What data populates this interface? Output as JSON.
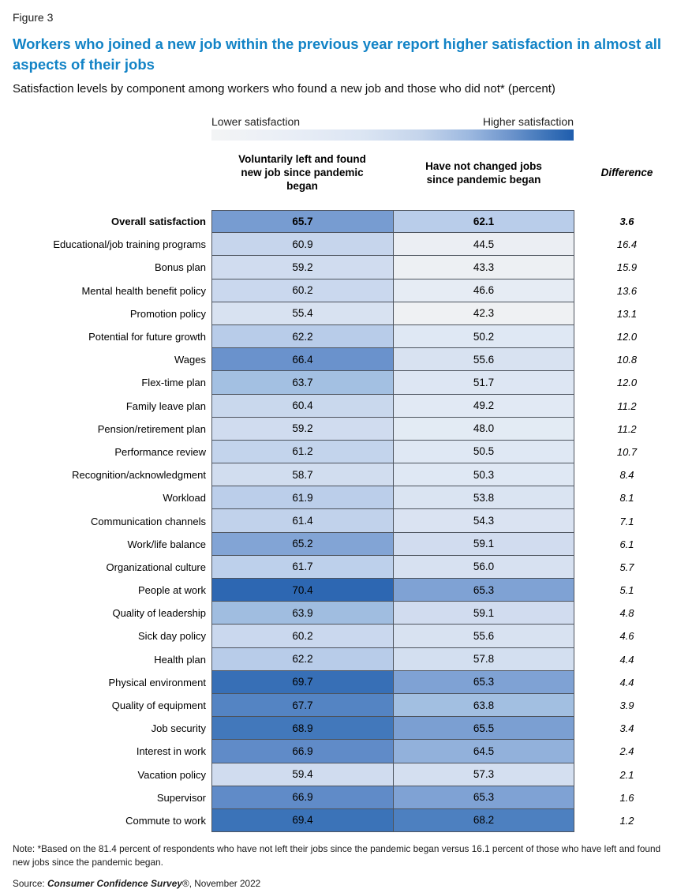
{
  "header": {
    "figure_label": "Figure 3",
    "title": "Workers who joined a new job within the previous year report higher satisfaction in almost all aspects of their jobs",
    "subtitle": "Satisfaction levels by component among workers who found a new job and those who did not* (percent)"
  },
  "footer": {
    "note": "Note: *Based on the 81.4 percent of respondents who have not left their jobs since the pandemic began versus 16.1 percent of those who have left and found new jobs since the pandemic began.",
    "source_prefix": "Source: ",
    "source_name": "Consumer Confidence Survey",
    "source_suffix": "®, November 2022"
  },
  "chart_data": {
    "type": "heatmap",
    "title": "Workers who joined a new job within the previous year report higher satisfaction in almost all aspects of their jobs",
    "subtitle": "Satisfaction levels by component among workers who found a new job and those who did not* (percent)",
    "legend": {
      "low_label": "Lower satisfaction",
      "high_label": "Higher satisfaction",
      "gradient_from": "#f3f4f5",
      "gradient_to": "#1f5dad"
    },
    "columns": [
      "Voluntarily left and found new job since pandemic began",
      "Have not changed jobs since pandemic began",
      "Difference"
    ],
    "rows": [
      {
        "label": "Overall satisfaction",
        "left": "65.7",
        "right": "62.1",
        "diff": "3.6"
      },
      {
        "label": "Educational/job training programs",
        "left": "60.9",
        "right": "44.5",
        "diff": "16.4"
      },
      {
        "label": "Bonus plan",
        "left": "59.2",
        "right": "43.3",
        "diff": "15.9"
      },
      {
        "label": "Mental health benefit policy",
        "left": "60.2",
        "right": "46.6",
        "diff": "13.6"
      },
      {
        "label": "Promotion policy",
        "left": "55.4",
        "right": "42.3",
        "diff": "13.1"
      },
      {
        "label": "Potential for future growth",
        "left": "62.2",
        "right": "50.2",
        "diff": "12.0"
      },
      {
        "label": "Wages",
        "left": "66.4",
        "right": "55.6",
        "diff": "10.8"
      },
      {
        "label": "Flex-time plan",
        "left": "63.7",
        "right": "51.7",
        "diff": "12.0"
      },
      {
        "label": "Family leave plan",
        "left": "60.4",
        "right": "49.2",
        "diff": "11.2"
      },
      {
        "label": "Pension/retirement plan",
        "left": "59.2",
        "right": "48.0",
        "diff": "11.2"
      },
      {
        "label": "Performance review",
        "left": "61.2",
        "right": "50.5",
        "diff": "10.7"
      },
      {
        "label": "Recognition/acknowledgment",
        "left": "58.7",
        "right": "50.3",
        "diff": "8.4"
      },
      {
        "label": "Workload",
        "left": "61.9",
        "right": "53.8",
        "diff": "8.1"
      },
      {
        "label": "Communication channels",
        "left": "61.4",
        "right": "54.3",
        "diff": "7.1"
      },
      {
        "label": "Work/life balance",
        "left": "65.2",
        "right": "59.1",
        "diff": "6.1"
      },
      {
        "label": "Organizational culture",
        "left": "61.7",
        "right": "56.0",
        "diff": "5.7"
      },
      {
        "label": "People at work",
        "left": "70.4",
        "right": "65.3",
        "diff": "5.1"
      },
      {
        "label": "Quality of leadership",
        "left": "63.9",
        "right": "59.1",
        "diff": "4.8"
      },
      {
        "label": "Sick day policy",
        "left": "60.2",
        "right": "55.6",
        "diff": "4.6"
      },
      {
        "label": "Health plan",
        "left": "62.2",
        "right": "57.8",
        "diff": "4.4"
      },
      {
        "label": "Physical environment",
        "left": "69.7",
        "right": "65.3",
        "diff": "4.4"
      },
      {
        "label": "Quality of equipment",
        "left": "67.7",
        "right": "63.8",
        "diff": "3.9"
      },
      {
        "label": "Job security",
        "left": "68.9",
        "right": "65.5",
        "diff": "3.4"
      },
      {
        "label": "Interest in work",
        "left": "66.9",
        "right": "64.5",
        "diff": "2.4"
      },
      {
        "label": "Vacation policy",
        "left": "59.4",
        "right": "57.3",
        "diff": "2.1"
      },
      {
        "label": "Supervisor",
        "left": "66.9",
        "right": "65.3",
        "diff": "1.6"
      },
      {
        "label": "Commute to work",
        "left": "69.4",
        "right": "68.2",
        "diff": "1.2"
      }
    ],
    "value_range": [
      42.3,
      70.4
    ],
    "colormap": {
      "stops": [
        [
          42.3,
          "#eff1f3"
        ],
        [
          50.2,
          "#dfe8f4"
        ],
        [
          55.6,
          "#d8e2f1"
        ],
        [
          59.4,
          "#d0dcef"
        ],
        [
          61.0,
          "#c5d5ec"
        ],
        [
          62.1,
          "#b9cdea"
        ],
        [
          63.8,
          "#a2bfe1"
        ],
        [
          65.4,
          "#7da0d3"
        ],
        [
          66.9,
          "#608bc8"
        ],
        [
          68.2,
          "#4d80c0"
        ],
        [
          69.4,
          "#3b73b8"
        ],
        [
          70.4,
          "#2d67b2"
        ]
      ]
    },
    "accent_color": "#1283C6",
    "border_color": "#4d545e"
  }
}
